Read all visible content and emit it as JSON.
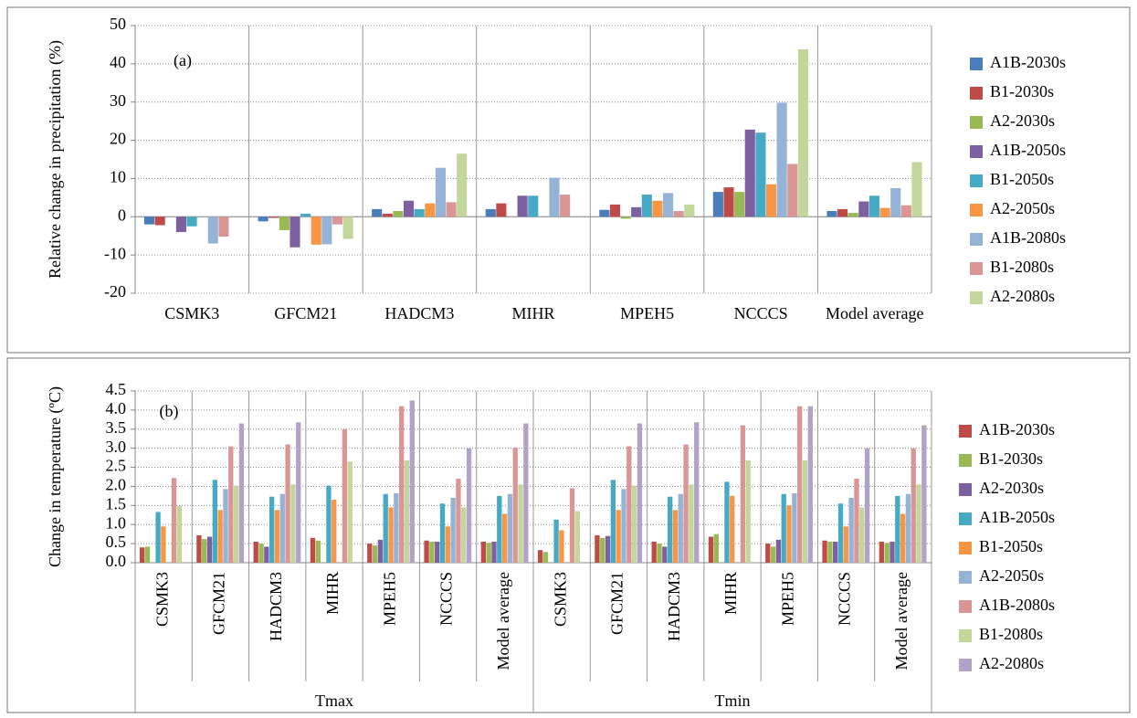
{
  "chart_data": [
    {
      "type": "bar",
      "annotation": "(a)",
      "ylabel": "Relative change in precipitation (%)",
      "categories": [
        "CSMK3",
        "GFCM21",
        "HADCM3",
        "MIHR",
        "MPEH5",
        "NCCCS",
        "Model average"
      ],
      "series": [
        {
          "name": "A1B-2030s",
          "color": "#4a7ebb",
          "values": [
            -2,
            -1.2,
            2,
            2,
            1.8,
            6.5,
            1.5
          ]
        },
        {
          "name": "B1-2030s",
          "color": "#be4b48",
          "values": [
            -2.2,
            -0.3,
            0.8,
            3.5,
            3.2,
            7.7,
            2
          ]
        },
        {
          "name": "A2-2030s",
          "color": "#98b954",
          "values": [
            0,
            -3.5,
            1.5,
            0,
            -0.5,
            6.5,
            1
          ]
        },
        {
          "name": "A1B-2050s",
          "color": "#7d60a0",
          "values": [
            -4,
            -8,
            4.2,
            5.5,
            2.5,
            22.8,
            4
          ]
        },
        {
          "name": "B1-2050s",
          "color": "#46aac5",
          "values": [
            -2.5,
            0.8,
            2,
            5.5,
            5.8,
            22,
            5.5
          ]
        },
        {
          "name": "A2-2050s",
          "color": "#f79646",
          "values": [
            0,
            -7.3,
            3.5,
            0,
            4.2,
            8.5,
            2.3
          ]
        },
        {
          "name": "A1B-2080s",
          "color": "#95b3d7",
          "values": [
            -7,
            -7.2,
            12.8,
            10.2,
            6.2,
            29.8,
            7.5
          ]
        },
        {
          "name": "B1-2080s",
          "color": "#d99694",
          "values": [
            -5.2,
            -2,
            3.8,
            5.8,
            1.5,
            13.8,
            3
          ]
        },
        {
          "name": "A2-2080s",
          "color": "#c3d69b",
          "values": [
            0,
            -5.8,
            16.5,
            0,
            3.2,
            43.8,
            14.3
          ]
        }
      ],
      "ylim": [
        -20,
        50
      ],
      "yticks": [
        -20,
        -10,
        0,
        10,
        20,
        30,
        40,
        50
      ],
      "grid": true,
      "legend": "right"
    },
    {
      "type": "bar",
      "annotation": "(b)",
      "ylabel": "Change in temperature (ºC)",
      "group_labels": [
        "Tmax",
        "Tmin"
      ],
      "categories": [
        "CSMK3",
        "GFCM21",
        "HADCM3",
        "MIHR",
        "MPEH5",
        "NCCCS",
        "Model average",
        "CSMK3",
        "GFCM21",
        "HADCM3",
        "MIHR",
        "MPEH5",
        "NCCCS",
        "Model average"
      ],
      "series": [
        {
          "name": "A1B-2030s",
          "color": "#be4b48",
          "values": [
            0.4,
            0.72,
            0.55,
            0.65,
            0.5,
            0.58,
            0.55,
            0.33,
            0.72,
            0.55,
            0.68,
            0.5,
            0.58,
            0.55
          ]
        },
        {
          "name": "B1-2030s",
          "color": "#98b954",
          "values": [
            0.42,
            0.62,
            0.5,
            0.58,
            0.45,
            0.55,
            0.52,
            0.28,
            0.65,
            0.5,
            0.75,
            0.42,
            0.55,
            0.52
          ]
        },
        {
          "name": "A2-2030s",
          "color": "#7d60a0",
          "values": [
            0,
            0.68,
            0.42,
            0,
            0.6,
            0.55,
            0.55,
            0,
            0.7,
            0.42,
            0,
            0.6,
            0.55,
            0.55
          ]
        },
        {
          "name": "A1B-2050s",
          "color": "#46aac5",
          "values": [
            1.33,
            2.17,
            1.73,
            2.02,
            1.8,
            1.55,
            1.75,
            1.13,
            2.17,
            1.73,
            2.12,
            1.8,
            1.55,
            1.75
          ]
        },
        {
          "name": "B1-2050s",
          "color": "#f79646",
          "values": [
            0.95,
            1.38,
            1.38,
            1.65,
            1.45,
            0.95,
            1.28,
            0.85,
            1.38,
            1.38,
            1.75,
            1.5,
            0.95,
            1.28
          ]
        },
        {
          "name": "A2-2050s",
          "color": "#95b3d7",
          "values": [
            0,
            1.93,
            1.8,
            0,
            1.82,
            1.7,
            1.8,
            0,
            1.93,
            1.8,
            0,
            1.82,
            1.7,
            1.8
          ]
        },
        {
          "name": "A1B-2080s",
          "color": "#d99694",
          "values": [
            2.22,
            3.05,
            3.1,
            3.5,
            4.1,
            2.2,
            3.02,
            1.95,
            3.05,
            3.1,
            3.6,
            4.1,
            2.2,
            3.0
          ]
        },
        {
          "name": "B1-2080s",
          "color": "#c3d69b",
          "values": [
            1.48,
            2.02,
            2.05,
            2.65,
            2.68,
            1.45,
            2.05,
            1.35,
            2.02,
            2.05,
            2.68,
            2.68,
            1.45,
            2.05
          ]
        },
        {
          "name": "A2-2080s",
          "color": "#b3a2c7",
          "values": [
            0,
            3.65,
            3.68,
            0,
            4.25,
            3.0,
            3.65,
            0,
            3.65,
            3.68,
            0,
            4.1,
            3.0,
            3.6
          ]
        }
      ],
      "ylim": [
        0,
        4.5
      ],
      "yticks": [
        {
          "value": 0,
          "label": "0.0"
        },
        0.5,
        {
          "value": 1,
          "label": "1.0"
        },
        1.5,
        {
          "value": 2,
          "label": "2.0"
        },
        2.5,
        {
          "value": 3,
          "label": "3.0"
        },
        3.5,
        {
          "value": 4,
          "label": "4.0"
        },
        4.5
      ],
      "grid": true,
      "legend": "right"
    }
  ]
}
